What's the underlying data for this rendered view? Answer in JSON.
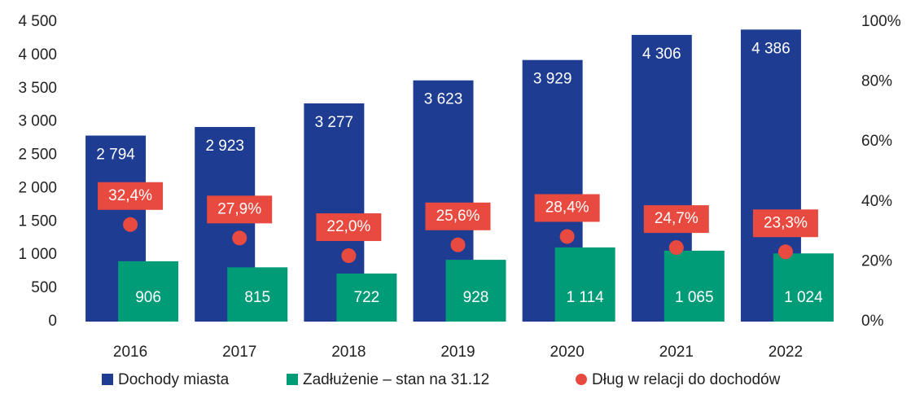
{
  "chart_data": {
    "type": "bar",
    "categories": [
      "2016",
      "2017",
      "2018",
      "2019",
      "2020",
      "2021",
      "2022"
    ],
    "series": [
      {
        "name": "Dochody miasta",
        "color": "#1f3c93",
        "type": "bar",
        "values": [
          2794,
          2923,
          3277,
          3623,
          3929,
          4306,
          4386
        ],
        "value_labels": [
          "2 794",
          "2 923",
          "3 277",
          "3 623",
          "3 929",
          "4 306",
          "4 386"
        ]
      },
      {
        "name": "Zadłużenie – stan na 31.12",
        "color": "#009b77",
        "type": "bar",
        "values": [
          906,
          815,
          722,
          928,
          1114,
          1065,
          1024
        ],
        "value_labels": [
          "906",
          "815",
          "722",
          "928",
          "1 114",
          "1 065",
          "1 024"
        ]
      },
      {
        "name": "Dług w relacji do dochodów",
        "color": "#e84a3f",
        "type": "scatter",
        "axis": "y2",
        "values": [
          32.4,
          27.9,
          22.0,
          25.6,
          28.4,
          24.7,
          23.3
        ],
        "value_labels": [
          "32,4%",
          "27,9%",
          "22,0%",
          "25,6%",
          "28,4%",
          "24,7%",
          "23,3%"
        ]
      }
    ],
    "ylim": [
      0,
      4500
    ],
    "yticks": [
      0,
      500,
      {
        "value": 1000,
        "label": "1 000"
      },
      {
        "value": 1500,
        "label": "1 500"
      },
      {
        "value": 2000,
        "label": "2 000"
      },
      {
        "value": 2500,
        "label": "2 500"
      },
      {
        "value": 3000,
        "label": "3 000"
      },
      {
        "value": 3500,
        "label": "3 500"
      },
      {
        "value": 4000,
        "label": "4 000"
      },
      {
        "value": 4500,
        "label": "4 500"
      }
    ],
    "y2lim": [
      0,
      100
    ],
    "y2ticks": [
      {
        "value": 0,
        "label": "0%"
      },
      {
        "value": 20,
        "label": "20%"
      },
      {
        "value": 40,
        "label": "40%"
      },
      {
        "value": 60,
        "label": "60%"
      },
      {
        "value": 80,
        "label": "80%"
      },
      {
        "value": 100,
        "label": "100%"
      }
    ],
    "legend": "bottom"
  }
}
